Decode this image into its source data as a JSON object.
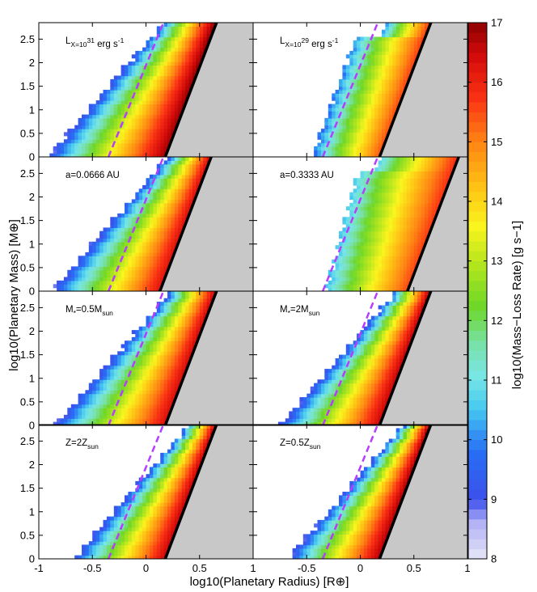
{
  "chart_data": {
    "type": "heatmap",
    "layout": "4x2 grid of panels",
    "xlabel": "log10(Planetary Radius) [R⊕]",
    "ylabel": "log10(Planetary Mass) [M⊕]",
    "colorbar_label": "log10(Mass−Loss Rate) [g s−1]",
    "xlim": [
      -1,
      1
    ],
    "ylim": [
      0,
      2.85
    ],
    "xticks": [
      -1,
      -0.5,
      0,
      0.5,
      1
    ],
    "yticks": [
      0,
      0.5,
      1,
      1.5,
      2,
      2.5
    ],
    "colorbar_range": [
      8,
      17
    ],
    "colorbar_ticks": [
      8,
      9,
      10,
      11,
      12,
      13,
      14,
      15,
      16,
      17
    ],
    "dashed_line_color": "#b63cff",
    "solid_line_color": "#000000",
    "excluded_region_color": "#c8c8c8",
    "panels": [
      {
        "label": "L_X=10^31 erg s^-1",
        "left_edge_y0": -0.92,
        "left_slope": 0.38,
        "dashed_x0": -0.35,
        "dashed_slope": 0.18,
        "solid_x0": 0.18,
        "solid_slope": 0.168,
        "min_rate": 8.8,
        "max_rate": 16.9,
        "top_edge_x": -0.05
      },
      {
        "label": "L_X=10^29 erg s^-1",
        "left_edge_y0": -0.45,
        "left_slope": 0.16,
        "dashed_x0": -0.35,
        "dashed_slope": 0.18,
        "solid_x0": 0.18,
        "solid_slope": 0.168,
        "min_rate": 9.6,
        "max_rate": 15.5,
        "top_edge_x": 0.25
      },
      {
        "label": "a=0.0666 AU",
        "left_edge_y0": -0.88,
        "left_slope": 0.38,
        "dashed_x0": -0.35,
        "dashed_slope": 0.18,
        "solid_x0": 0.13,
        "solid_slope": 0.168,
        "min_rate": 8.8,
        "max_rate": 16.3,
        "top_edge_x": 0.15
      },
      {
        "label": "a=0.3333 AU",
        "left_edge_y0": -0.32,
        "left_slope": 0.12,
        "dashed_x0": -0.35,
        "dashed_slope": 0.18,
        "solid_x0": 0.44,
        "solid_slope": 0.168,
        "min_rate": 10.3,
        "max_rate": 15.6,
        "top_edge_x": 0.2
      },
      {
        "label": "M_*=0.5M_sun",
        "left_edge_y0": -0.85,
        "left_slope": 0.38,
        "dashed_x0": -0.35,
        "dashed_slope": 0.18,
        "solid_x0": 0.18,
        "solid_slope": 0.168,
        "min_rate": 8.8,
        "max_rate": 16.4,
        "top_edge_x": 0.05
      },
      {
        "label": "M_*=2M_sun",
        "left_edge_y0": -0.75,
        "left_slope": 0.38,
        "dashed_x0": -0.35,
        "dashed_slope": 0.18,
        "solid_x0": 0.18,
        "solid_slope": 0.168,
        "min_rate": 8.8,
        "max_rate": 16.6,
        "top_edge_x": 0.15
      },
      {
        "label": "Z=2Z_sun",
        "left_edge_y0": -0.68,
        "left_slope": 0.38,
        "dashed_x0": -0.35,
        "dashed_slope": 0.18,
        "solid_x0": 0.18,
        "solid_slope": 0.168,
        "min_rate": 8.8,
        "max_rate": 16.6,
        "top_edge_x": 0.2
      },
      {
        "label": "Z=0.5Z_sun",
        "left_edge_y0": -0.68,
        "left_slope": 0.38,
        "dashed_x0": -0.35,
        "dashed_slope": 0.18,
        "solid_x0": 0.18,
        "solid_slope": 0.168,
        "min_rate": 8.8,
        "max_rate": 16.8,
        "top_edge_x": 0.15
      }
    ]
  }
}
